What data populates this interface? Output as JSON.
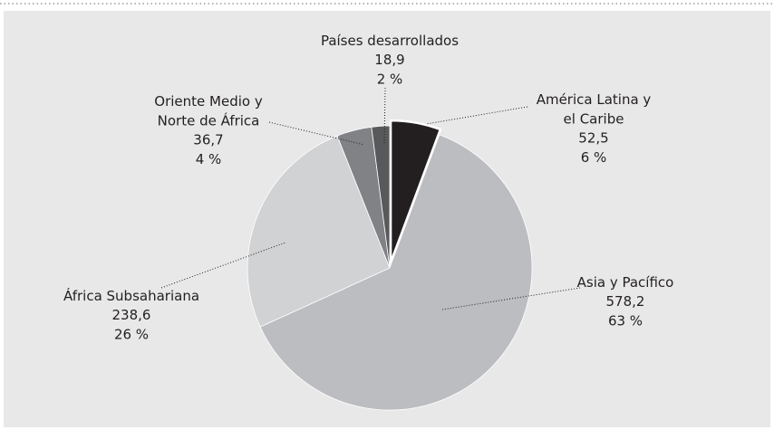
{
  "chart_data": {
    "type": "pie",
    "categories": [
      "Países desarrollados",
      "América Latina y\nel Caribe",
      "Asia y Pacífico",
      "África Subsahariana",
      "Oriente Medio y\nNorte de África"
    ],
    "values": [
      18.9,
      52.5,
      578.2,
      238.6,
      36.7
    ],
    "value_labels": [
      "18,9",
      "52,5",
      "578,2",
      "238,6",
      "36,7"
    ],
    "percents": [
      2,
      6,
      63,
      26,
      4
    ],
    "percent_labels": [
      "2 %",
      "6 %",
      "63 %",
      "26 %",
      "4 %"
    ],
    "colors": [
      "#58595b",
      "#231f20",
      "#bcbdc0",
      "#d1d2d4",
      "#808285"
    ],
    "slice_order": [
      1,
      2,
      3,
      4,
      0
    ],
    "exploded": [
      1
    ]
  }
}
